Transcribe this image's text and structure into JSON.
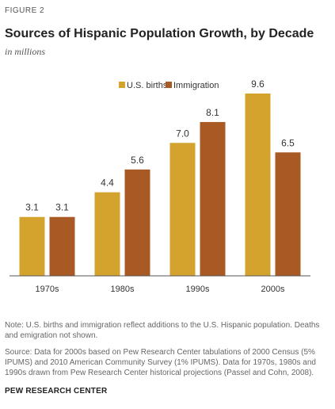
{
  "figure_label": "FIGURE 2",
  "colors": {
    "births": "#d4a32e",
    "immigration": "#a95a24",
    "axis": "#555555"
  },
  "chart_data": {
    "type": "bar",
    "title": "Sources of Hispanic Population Growth, by Decade",
    "subtitle": "in millions",
    "categories": [
      "1970s",
      "1980s",
      "1990s",
      "2000s"
    ],
    "series": [
      {
        "name": "U.S. births",
        "values": [
          3.1,
          4.4,
          7.0,
          9.6
        ],
        "labels": [
          "3.1",
          "4.4",
          "7.0",
          "9.6"
        ]
      },
      {
        "name": "Immigration",
        "values": [
          3.1,
          5.6,
          8.1,
          6.5
        ],
        "labels": [
          "3.1",
          "5.6",
          "8.1",
          "6.5"
        ]
      }
    ],
    "xlabel": "",
    "ylabel": "",
    "ylim": [
      0,
      9.6
    ],
    "legend": "top-center",
    "grid": false
  },
  "notes": {
    "note": "Note: U.S. births and immigration reflect additions to the U.S. Hispanic population. Deaths and emigration not shown.",
    "source": "Source: Data for 2000s based on Pew Research Center tabulations of 2000 Census (5% IPUMS) and 2010 American Community Survey (1% IPUMS). Data for 1970s, 1980s and 1990s drawn from Pew Research Center historical projections (Passel and Cohn, 2008)."
  },
  "organization": "PEW RESEARCH CENTER"
}
